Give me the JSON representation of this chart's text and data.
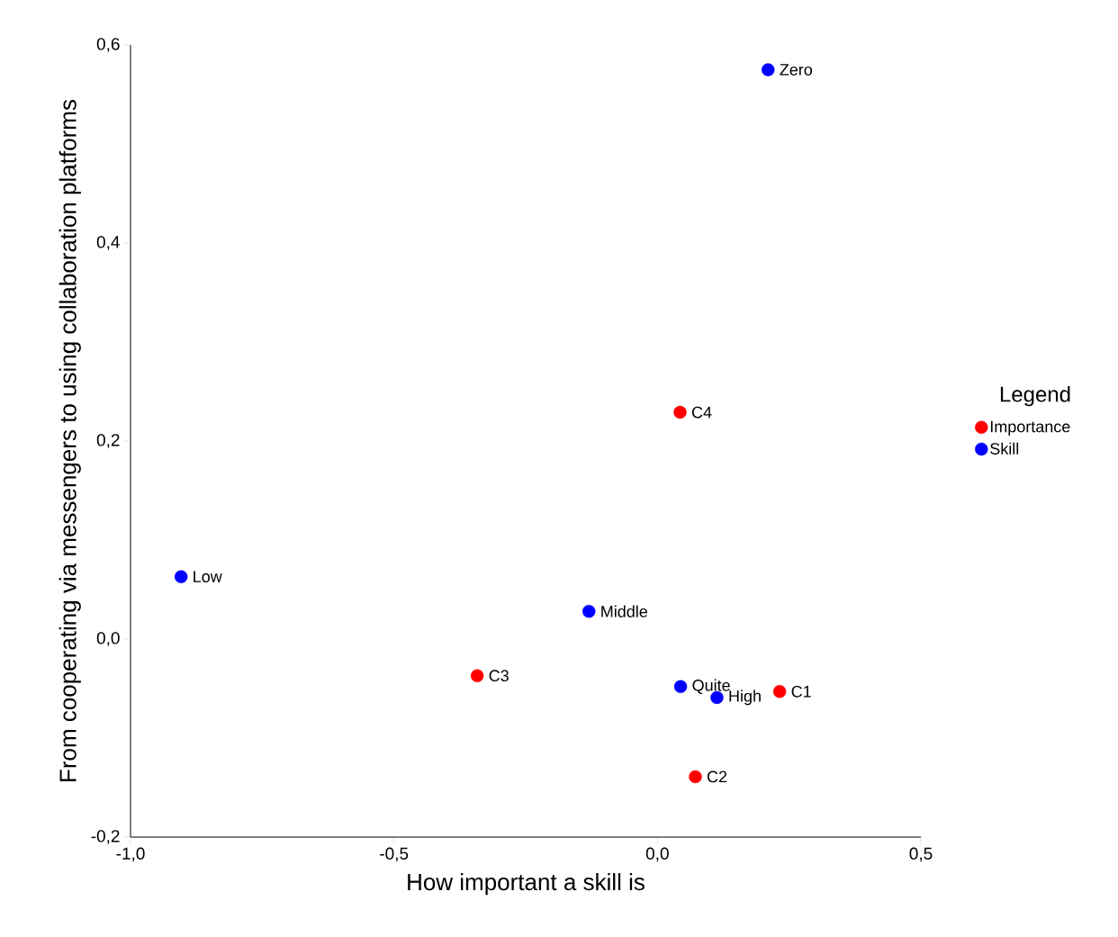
{
  "chart_data": {
    "type": "scatter",
    "xlabel": "How important a skill is",
    "ylabel": "From cooperating via messengers to using collaboration platforms",
    "legend_title": "Legend",
    "legend": "right",
    "marker": "circle",
    "grid": false,
    "xlim": [
      -1.0,
      0.5
    ],
    "ylim": [
      -0.2,
      0.6
    ],
    "xticks": [
      {
        "value": -1.0,
        "label": "-1,0"
      },
      {
        "value": -0.5,
        "label": "-0,5"
      },
      {
        "value": 0.0,
        "label": "0,0"
      },
      {
        "value": 0.5,
        "label": "0,5"
      }
    ],
    "yticks": [
      {
        "value": -0.2,
        "label": "-0,2"
      },
      {
        "value": 0.0,
        "label": "0,0"
      },
      {
        "value": 0.2,
        "label": "0,2"
      },
      {
        "value": 0.4,
        "label": "0,4"
      },
      {
        "value": 0.6,
        "label": "0,6"
      }
    ],
    "series": [
      {
        "name": "Importance",
        "color": "#ff0000",
        "x": [
          0.232,
          0.072,
          -0.342,
          0.043
        ],
        "values": [
          -0.053,
          -0.139,
          -0.037,
          0.229
        ]
      },
      {
        "name": "Skill",
        "color": "#0000ff",
        "x": [
          0.21,
          -0.904,
          -0.13,
          0.044,
          0.113
        ],
        "values": [
          0.575,
          0.063,
          0.028,
          -0.048,
          -0.059
        ]
      }
    ],
    "annotations": [
      {
        "text": "C1",
        "x": 0.232,
        "y": -0.053
      },
      {
        "text": "C2",
        "x": 0.072,
        "y": -0.139
      },
      {
        "text": "C3",
        "x": -0.342,
        "y": -0.037
      },
      {
        "text": "C4",
        "x": 0.043,
        "y": 0.229
      },
      {
        "text": "Zero",
        "x": 0.21,
        "y": 0.575
      },
      {
        "text": "Low",
        "x": -0.904,
        "y": 0.063
      },
      {
        "text": "Middle",
        "x": -0.13,
        "y": 0.028
      },
      {
        "text": "Quite",
        "x": 0.044,
        "y": -0.048
      },
      {
        "text": "High",
        "x": 0.113,
        "y": -0.059
      }
    ]
  }
}
